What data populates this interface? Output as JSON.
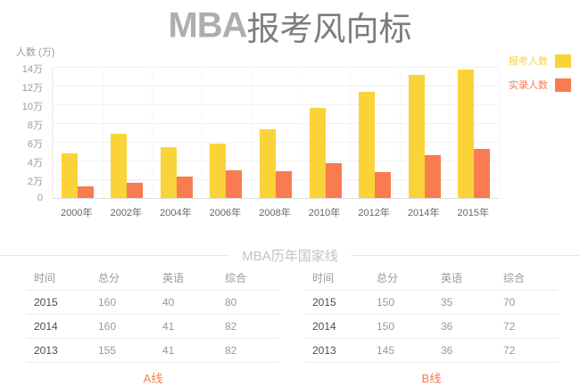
{
  "title": {
    "brand": "MBA",
    "rest": "报考风向标"
  },
  "section": {
    "title": "MBA历年国家线"
  },
  "chart": {
    "y_axis_title": "人数 (万)",
    "y_ticks": [
      "14万",
      "12万",
      "10万",
      "8万",
      "6万",
      "4万",
      "2万",
      "0"
    ]
  },
  "chart_data": {
    "type": "bar",
    "title": "MBA报考风向标",
    "ylabel": "人数 (万)",
    "ylim": [
      0,
      14
    ],
    "y_tick_step": 2,
    "grid": true,
    "legend_position": "top-right",
    "categories": [
      "2000年",
      "2002年",
      "2004年",
      "2006年",
      "2008年",
      "2010年",
      "2012年",
      "2014年",
      "2015年"
    ],
    "series": [
      {
        "key": "applicants",
        "name": "报考人数",
        "color": "#FAD338",
        "values": [
          4.8,
          6.9,
          5.4,
          5.8,
          7.3,
          9.6,
          11.3,
          13.1,
          13.7
        ]
      },
      {
        "key": "admitted",
        "name": "实录人数",
        "color": "#F97B50",
        "values": [
          1.2,
          1.6,
          2.3,
          3.0,
          2.9,
          3.7,
          2.8,
          4.6,
          5.2
        ]
      }
    ]
  },
  "tables": [
    {
      "caption": "A线",
      "headers": [
        "时间",
        "总分",
        "英语",
        "综合"
      ],
      "rows": [
        [
          "2015",
          "160",
          "40",
          "80"
        ],
        [
          "2014",
          "160",
          "41",
          "82"
        ],
        [
          "2013",
          "155",
          "41",
          "82"
        ]
      ]
    },
    {
      "caption": "B线",
      "headers": [
        "时间",
        "总分",
        "英语",
        "综合"
      ],
      "rows": [
        [
          "2015",
          "150",
          "35",
          "70"
        ],
        [
          "2014",
          "150",
          "36",
          "72"
        ],
        [
          "2013",
          "145",
          "36",
          "72"
        ]
      ]
    }
  ],
  "colors": {
    "applicants": "#FAD338",
    "admitted": "#F97B50",
    "caption_accent": "#F87B4F",
    "grid": "#F1F1F1",
    "axis_text": "#9A9A9A"
  }
}
